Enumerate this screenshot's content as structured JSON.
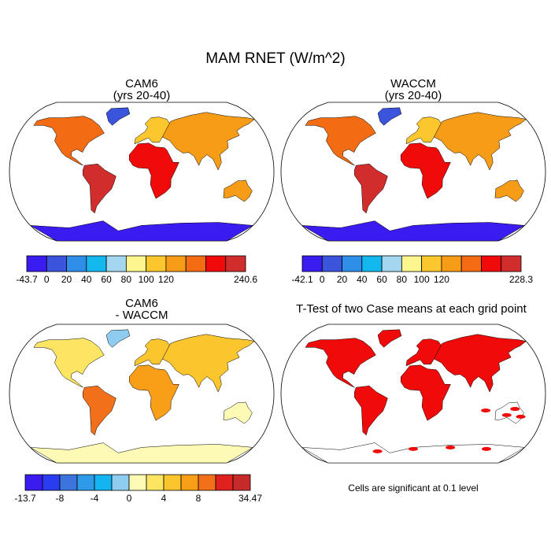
{
  "title": "MAM RNET (W/m^2)",
  "panels": [
    {
      "id": "cam6",
      "title_line1": "CAM6",
      "title_line2": "(yrs 20-40)",
      "colorbar": {
        "colors": [
          "#3b1cf0",
          "#3a55dc",
          "#2f8ee8",
          "#13b8ef",
          "#a5d6f0",
          "#fdf58e",
          "#fbc72d",
          "#f79c17",
          "#f36b13",
          "#f00a0a",
          "#d22d2d"
        ],
        "tick_labels": [
          "-43.7",
          "0",
          "20",
          "40",
          "60",
          "80",
          "100",
          "120",
          "240.6"
        ],
        "tick_after_box": [
          0,
          1,
          2,
          3,
          4,
          5,
          6,
          7,
          11
        ]
      }
    },
    {
      "id": "waccm",
      "title_line1": "WACCM",
      "title_line2": "(yrs 20-40)",
      "colorbar": {
        "colors": [
          "#3b1cf0",
          "#3a55dc",
          "#2f8ee8",
          "#13b8ef",
          "#a5d6f0",
          "#fdf58e",
          "#fbc72d",
          "#f79c17",
          "#f36b13",
          "#f00a0a",
          "#d22d2d"
        ],
        "tick_labels": [
          "-42.1",
          "0",
          "20",
          "40",
          "60",
          "80",
          "100",
          "120",
          "228.3"
        ],
        "tick_after_box": [
          0,
          1,
          2,
          3,
          4,
          5,
          6,
          7,
          11
        ]
      }
    },
    {
      "id": "diff",
      "title_line1": "CAM6",
      "title_line2": "- WACCM",
      "colorbar": {
        "colors": [
          "#3b1cf0",
          "#2a3cf0",
          "#3a74dc",
          "#2f9ae8",
          "#13b4ef",
          "#8fcdf0",
          "#fdfab6",
          "#fde564",
          "#fbc52d",
          "#f99e17",
          "#f3701a",
          "#e12020",
          "#c72a2a"
        ],
        "tick_labels": [
          "-13.7",
          "-8",
          "-4",
          "0",
          "4",
          "8",
          "34.47"
        ],
        "tick_after_box": [
          0,
          2,
          4,
          6,
          8,
          10,
          13
        ]
      }
    },
    {
      "id": "ttest",
      "title": "T-Test of two Case means at each grid point",
      "note": "Cells are significant at 0.1 level"
    }
  ]
}
